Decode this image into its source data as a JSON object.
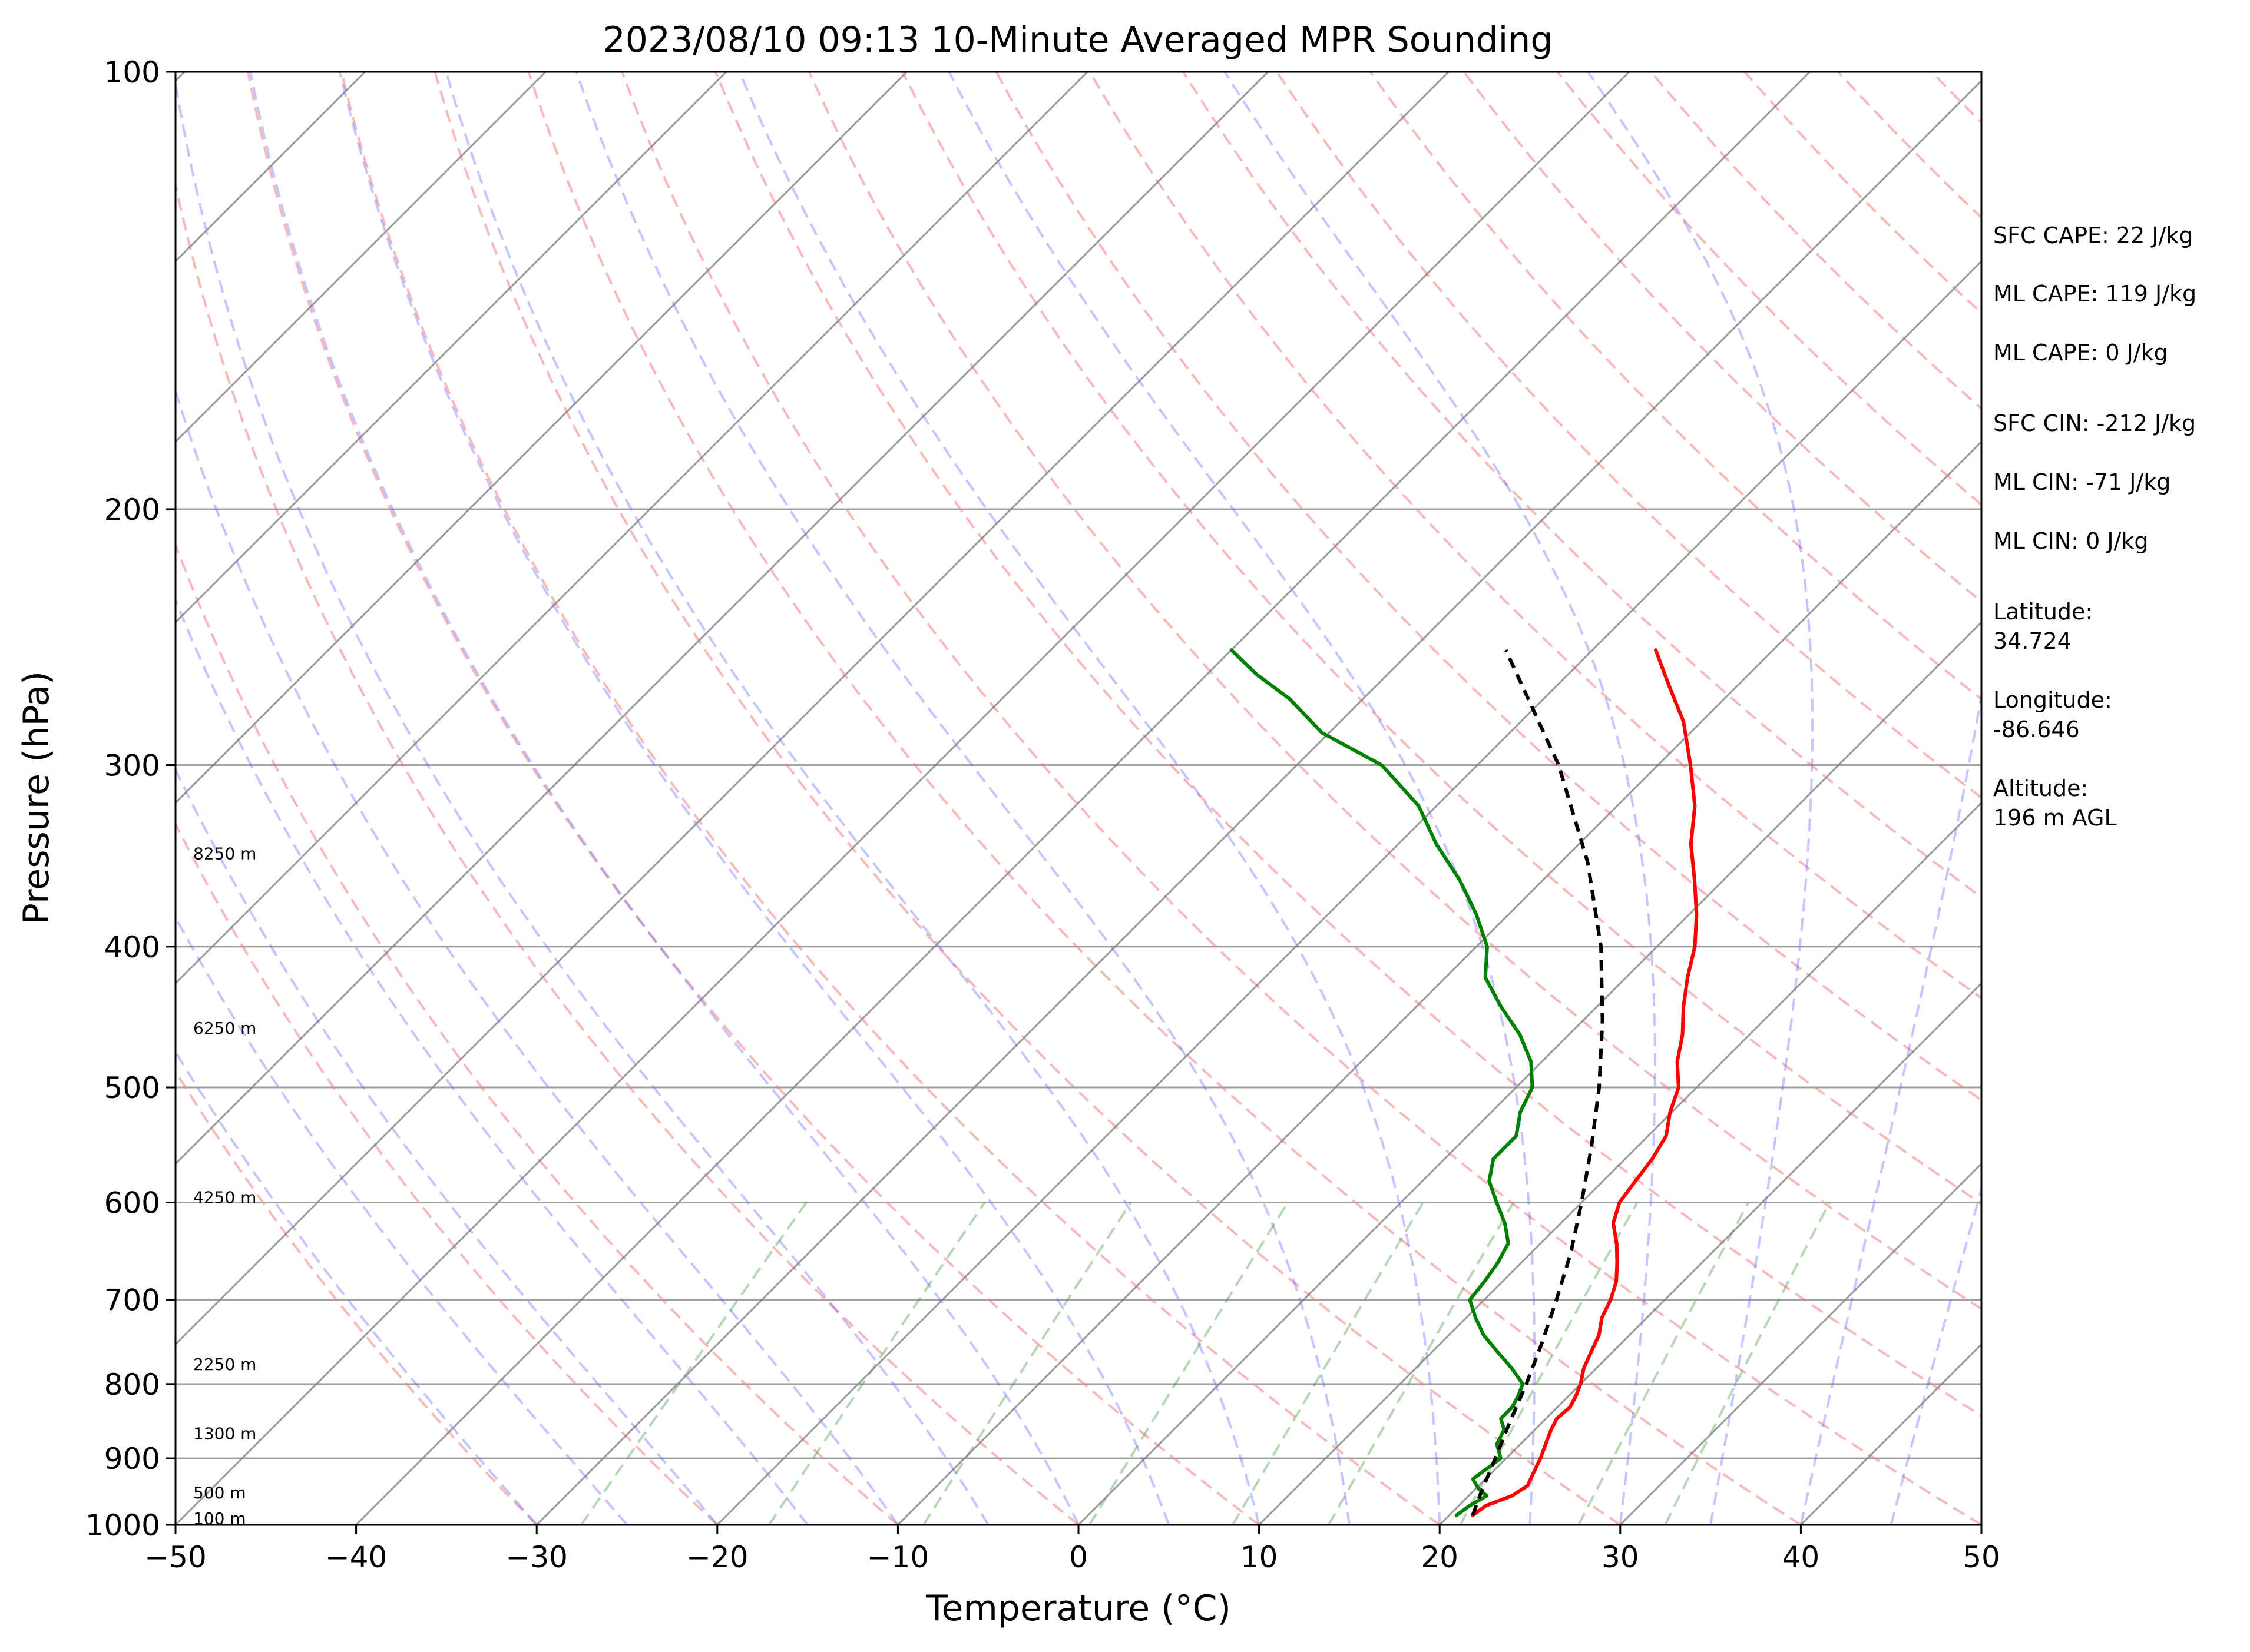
{
  "chart_data": {
    "type": "line",
    "title": "2023/08/10 09:13 10-Minute Averaged MPR Sounding",
    "xlabel": "Temperature (°C)",
    "ylabel": "Pressure (hPa)",
    "xlim": [
      -50,
      50
    ],
    "ylim": [
      1000,
      100
    ],
    "y_scale": "log",
    "skew": "skew-T (45°)",
    "grid": true,
    "x_ticks": [
      "−50",
      "−40",
      "−30",
      "−20",
      "−10",
      "0",
      "10",
      "20",
      "30",
      "40",
      "50"
    ],
    "y_ticks": [
      "100",
      "200",
      "300",
      "400",
      "500",
      "600",
      "700",
      "800",
      "900",
      "1000"
    ],
    "height_labels": [
      {
        "text": "100 m",
        "p": 990
      },
      {
        "text": "500 m",
        "p": 950
      },
      {
        "text": "1300 m",
        "p": 865
      },
      {
        "text": "2250 m",
        "p": 775
      },
      {
        "text": "4250 m",
        "p": 595
      },
      {
        "text": "6250 m",
        "p": 455
      },
      {
        "text": "8250 m",
        "p": 345
      }
    ],
    "series": [
      {
        "role": "temperature",
        "color": "#ff0000",
        "points": [
          {
            "p": 985,
            "t": 21.3
          },
          {
            "p": 970,
            "t": 21.5
          },
          {
            "p": 955,
            "t": 22.4
          },
          {
            "p": 940,
            "t": 22.7
          },
          {
            "p": 920,
            "t": 22.3
          },
          {
            "p": 900,
            "t": 21.9
          },
          {
            "p": 880,
            "t": 21.4
          },
          {
            "p": 860,
            "t": 20.9
          },
          {
            "p": 845,
            "t": 20.6
          },
          {
            "p": 830,
            "t": 20.7
          },
          {
            "p": 815,
            "t": 20.4
          },
          {
            "p": 800,
            "t": 20.0
          },
          {
            "p": 780,
            "t": 19.3
          },
          {
            "p": 760,
            "t": 18.8
          },
          {
            "p": 740,
            "t": 18.3
          },
          {
            "p": 720,
            "t": 17.5
          },
          {
            "p": 700,
            "t": 17.0
          },
          {
            "p": 680,
            "t": 16.3
          },
          {
            "p": 660,
            "t": 15.3
          },
          {
            "p": 640,
            "t": 14.2
          },
          {
            "p": 620,
            "t": 12.9
          },
          {
            "p": 600,
            "t": 12.1
          },
          {
            "p": 580,
            "t": 11.8
          },
          {
            "p": 560,
            "t": 11.5
          },
          {
            "p": 540,
            "t": 11.0
          },
          {
            "p": 520,
            "t": 9.9
          },
          {
            "p": 500,
            "t": 9.0
          },
          {
            "p": 480,
            "t": 7.5
          },
          {
            "p": 460,
            "t": 6.3
          },
          {
            "p": 440,
            "t": 4.8
          },
          {
            "p": 420,
            "t": 3.4
          },
          {
            "p": 400,
            "t": 2.1
          },
          {
            "p": 380,
            "t": 0.4
          },
          {
            "p": 360,
            "t": -1.6
          },
          {
            "p": 340,
            "t": -3.8
          },
          {
            "p": 320,
            "t": -5.7
          },
          {
            "p": 300,
            "t": -8.2
          },
          {
            "p": 280,
            "t": -11.0
          },
          {
            "p": 265,
            "t": -13.7
          },
          {
            "p": 250,
            "t": -16.5
          }
        ]
      },
      {
        "role": "dewpoint",
        "color": "#008000",
        "points": [
          {
            "p": 985,
            "t": 20.4
          },
          {
            "p": 970,
            "t": 20.6
          },
          {
            "p": 955,
            "t": 21.0
          },
          {
            "p": 945,
            "t": 20.2
          },
          {
            "p": 930,
            "t": 19.3
          },
          {
            "p": 915,
            "t": 19.5
          },
          {
            "p": 900,
            "t": 19.7
          },
          {
            "p": 880,
            "t": 18.7
          },
          {
            "p": 860,
            "t": 18.3
          },
          {
            "p": 845,
            "t": 17.5
          },
          {
            "p": 830,
            "t": 17.5
          },
          {
            "p": 815,
            "t": 17.2
          },
          {
            "p": 800,
            "t": 16.8
          },
          {
            "p": 780,
            "t": 15.3
          },
          {
            "p": 760,
            "t": 13.6
          },
          {
            "p": 740,
            "t": 11.9
          },
          {
            "p": 720,
            "t": 10.5
          },
          {
            "p": 700,
            "t": 9.2
          },
          {
            "p": 680,
            "t": 9.0
          },
          {
            "p": 660,
            "t": 8.7
          },
          {
            "p": 640,
            "t": 8.2
          },
          {
            "p": 620,
            "t": 6.9
          },
          {
            "p": 600,
            "t": 5.3
          },
          {
            "p": 580,
            "t": 3.7
          },
          {
            "p": 560,
            "t": 2.7
          },
          {
            "p": 540,
            "t": 2.7
          },
          {
            "p": 520,
            "t": 1.6
          },
          {
            "p": 500,
            "t": 0.9
          },
          {
            "p": 480,
            "t": -0.6
          },
          {
            "p": 460,
            "t": -2.7
          },
          {
            "p": 440,
            "t": -5.3
          },
          {
            "p": 420,
            "t": -7.8
          },
          {
            "p": 400,
            "t": -9.4
          },
          {
            "p": 380,
            "t": -11.8
          },
          {
            "p": 360,
            "t": -14.6
          },
          {
            "p": 340,
            "t": -17.9
          },
          {
            "p": 320,
            "t": -21.0
          },
          {
            "p": 300,
            "t": -25.3
          },
          {
            "p": 285,
            "t": -30.4
          },
          {
            "p": 270,
            "t": -34.1
          },
          {
            "p": 260,
            "t": -37.2
          },
          {
            "p": 250,
            "t": -40.0
          }
        ]
      },
      {
        "role": "parcel",
        "color": "#000000",
        "style": "dashed",
        "points": [
          {
            "p": 985,
            "t": 21.3
          },
          {
            "p": 950,
            "t": 20.5
          },
          {
            "p": 900,
            "t": 19.4
          },
          {
            "p": 850,
            "t": 18.2
          },
          {
            "p": 800,
            "t": 17.0
          },
          {
            "p": 750,
            "t": 15.6
          },
          {
            "p": 700,
            "t": 14.0
          },
          {
            "p": 650,
            "t": 12.2
          },
          {
            "p": 600,
            "t": 10.0
          },
          {
            "p": 550,
            "t": 7.5
          },
          {
            "p": 500,
            "t": 4.6
          },
          {
            "p": 450,
            "t": 1.1
          },
          {
            "p": 400,
            "t": -3.1
          },
          {
            "p": 350,
            "t": -8.5
          },
          {
            "p": 300,
            "t": -15.5
          },
          {
            "p": 250,
            "t": -24.8
          }
        ]
      }
    ],
    "annotations": [
      "SFC CAPE: 22 J/kg",
      "ML CAPE: 119 J/kg",
      "ML CAPE: 0 J/kg",
      "SFC CIN: -212 J/kg",
      "ML CIN: -71 J/kg",
      "ML CIN: 0 J/kg",
      "Latitude:",
      "34.724",
      "Longitude:",
      "-86.646",
      "Altitude:",
      "196 m AGL"
    ],
    "colors": {
      "temperature": "#ff0000",
      "dewpoint": "#008000",
      "parcel": "#000000",
      "dry_adiabats": "#f08080",
      "moist_adiabats": "#5a5aff",
      "mixing_ratio": "#2e8b2e",
      "isotherms": "#808080",
      "isobars": "#a0a0a0"
    }
  }
}
